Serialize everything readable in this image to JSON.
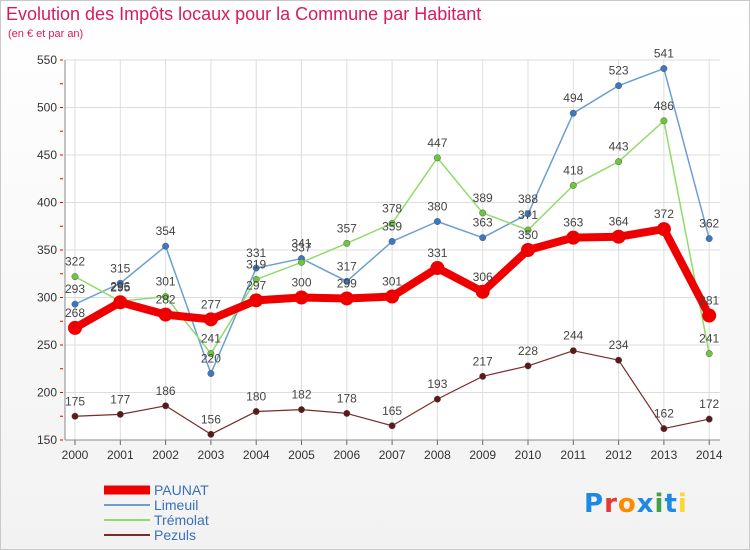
{
  "header": {
    "title": "Evolution des Impôts locaux pour la Commune par Habitant",
    "subtitle": "(en € et par an)"
  },
  "logo": {
    "text": "Proxiti",
    "letters": [
      "P",
      "r",
      "o",
      "x",
      "i",
      "t",
      "i"
    ],
    "colors": [
      "#1e88e5",
      "#e53935",
      "#fb8c00",
      "#1e88e5",
      "#43a047",
      "#1e88e5",
      "#fdd835"
    ]
  },
  "chart_data": {
    "type": "line",
    "categories": [
      "2000",
      "2001",
      "2002",
      "2003",
      "2004",
      "2005",
      "2006",
      "2007",
      "2008",
      "2009",
      "2010",
      "2011",
      "2012",
      "2013",
      "2014"
    ],
    "ylim": [
      150,
      550
    ],
    "yticks": [
      150,
      200,
      250,
      300,
      350,
      400,
      450,
      500,
      550
    ],
    "grid": true,
    "legend_position": "bottom-left",
    "series": [
      {
        "name": "Limeuil",
        "color": "#6a9fd4",
        "marker": "#3a78c2",
        "width": 1.5,
        "values": [
          293,
          315,
          354,
          220,
          331,
          341,
          317,
          359,
          380,
          363,
          388,
          494,
          523,
          541,
          362
        ],
        "labels": [
          "293",
          "315",
          "354",
          "220",
          "331",
          "341",
          "317",
          "359",
          "380",
          "363",
          "388",
          "494",
          "523",
          "541",
          "362"
        ]
      },
      {
        "name": "Trémolat",
        "color": "#8fdc6c",
        "marker": "#6cc83a",
        "width": 1.5,
        "values": [
          322,
          296,
          301,
          241,
          319,
          337,
          357,
          378,
          447,
          389,
          371,
          418,
          443,
          486,
          241
        ],
        "labels": [
          "322",
          "296",
          "301",
          "241",
          "319",
          "337",
          "357",
          "378",
          "447",
          "389",
          "371",
          "418",
          "443",
          "486",
          "241"
        ]
      },
      {
        "name": "Pezuls",
        "color": "#7a2a2a",
        "marker": "#5a1a1a",
        "width": 1.2,
        "values": [
          175,
          177,
          186,
          156,
          180,
          182,
          178,
          165,
          193,
          217,
          228,
          244,
          234,
          162,
          172
        ],
        "labels": [
          "175",
          "177",
          "186",
          "156",
          "180",
          "182",
          "178",
          "165",
          "193",
          "217",
          "228",
          "244",
          "234",
          "162",
          "172"
        ]
      },
      {
        "name": "PAUNAT",
        "color": "#ee0000",
        "marker": "#ee0000",
        "width": 8,
        "values": [
          268,
          295,
          282,
          277,
          297,
          300,
          299,
          301,
          331,
          306,
          350,
          363,
          364,
          372,
          281
        ],
        "labels": [
          "268",
          "295",
          "282",
          "277",
          "297",
          "300",
          "299",
          "301",
          "331",
          "306",
          "350",
          "363",
          "364",
          "372",
          "281"
        ]
      }
    ],
    "legend_order": [
      "PAUNAT",
      "Limeuil",
      "Trémolat",
      "Pezuls"
    ]
  }
}
